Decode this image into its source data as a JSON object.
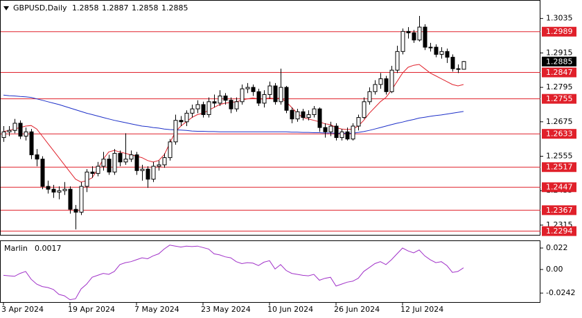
{
  "chart_data": [
    {
      "type": "candlestick",
      "title": "GBPUSD,Daily",
      "header_ohlc": [
        1.2858,
        1.2887,
        1.2858,
        1.2885
      ],
      "categories": [
        "3 Apr 2024",
        null,
        null,
        null,
        null,
        null,
        null,
        null,
        null,
        null,
        null,
        null,
        "19 Apr 2024",
        null,
        null,
        null,
        null,
        null,
        null,
        null,
        null,
        null,
        null,
        null,
        "7 May 2024",
        null,
        null,
        null,
        null,
        null,
        null,
        null,
        null,
        null,
        null,
        null,
        "23 May 2024",
        null,
        null,
        null,
        null,
        null,
        null,
        null,
        null,
        null,
        null,
        null,
        "10 Jun 2024",
        null,
        null,
        null,
        null,
        null,
        null,
        null,
        null,
        null,
        null,
        null,
        "26 Jun 2024",
        null,
        null,
        null,
        null,
        null,
        null,
        null,
        null,
        null,
        null,
        null,
        "12 Jul 2024",
        null,
        null,
        null,
        null,
        null,
        null,
        null,
        null,
        null,
        null,
        null
      ],
      "open": [
        1.262,
        1.264,
        1.2645,
        1.267,
        1.2625,
        1.264,
        1.256,
        1.2545,
        1.245,
        1.244,
        1.243,
        1.2435,
        1.244,
        1.237,
        1.236,
        1.245,
        1.25,
        1.2495,
        1.252,
        1.2545,
        1.25,
        1.2565,
        1.2535,
        1.2545,
        1.256,
        1.2505,
        1.251,
        1.2475,
        1.252,
        1.2525,
        1.255,
        1.2605,
        1.268,
        1.2675,
        1.2705,
        1.272,
        1.2735,
        1.27,
        1.2745,
        1.274,
        1.2765,
        1.275,
        1.272,
        1.2745,
        1.279,
        1.2795,
        1.278,
        1.274,
        1.277,
        1.28,
        1.2745,
        1.2795,
        1.2715,
        1.2685,
        1.271,
        1.269,
        1.27,
        1.272,
        1.2655,
        1.264,
        1.266,
        1.262,
        1.264,
        1.2615,
        1.266,
        1.269,
        1.2745,
        1.278,
        1.2805,
        1.2825,
        1.278,
        1.2855,
        1.292,
        1.299,
        1.2985,
        1.296,
        1.3005,
        1.2935,
        1.2935,
        1.291,
        1.292,
        1.29,
        1.286,
        1.2858
      ],
      "high": [
        1.266,
        1.266,
        1.2685,
        1.268,
        1.2655,
        1.265,
        1.258,
        1.2555,
        1.247,
        1.2455,
        1.245,
        1.2465,
        1.245,
        1.2385,
        1.2465,
        1.251,
        1.252,
        1.2535,
        1.257,
        1.256,
        1.258,
        1.2575,
        1.2635,
        1.2575,
        1.257,
        1.2525,
        1.252,
        1.2535,
        1.254,
        1.2565,
        1.2615,
        1.27,
        1.2695,
        1.2715,
        1.2735,
        1.275,
        1.2745,
        1.276,
        1.277,
        1.2785,
        1.2775,
        1.276,
        1.276,
        1.2805,
        1.281,
        1.2805,
        1.279,
        1.2785,
        1.2815,
        1.281,
        1.286,
        1.28,
        1.2725,
        1.272,
        1.272,
        1.2715,
        1.273,
        1.2725,
        1.267,
        1.2675,
        1.267,
        1.265,
        1.2655,
        1.267,
        1.27,
        1.276,
        1.2795,
        1.282,
        1.2845,
        1.2835,
        1.287,
        1.294,
        1.3,
        1.3005,
        1.2995,
        1.3044,
        1.3015,
        1.295,
        1.2945,
        1.2935,
        1.293,
        1.291,
        1.2875,
        1.2887
      ],
      "low": [
        1.2605,
        1.2625,
        1.2635,
        1.2615,
        1.261,
        1.2545,
        1.252,
        1.244,
        1.2425,
        1.241,
        1.2405,
        1.242,
        1.2355,
        1.23,
        1.235,
        1.243,
        1.248,
        1.2485,
        1.2505,
        1.249,
        1.249,
        1.252,
        1.2525,
        1.2535,
        1.249,
        1.247,
        1.2445,
        1.2465,
        1.2505,
        1.2515,
        1.254,
        1.2595,
        1.266,
        1.266,
        1.269,
        1.2705,
        1.269,
        1.269,
        1.2725,
        1.273,
        1.2735,
        1.2705,
        1.271,
        1.2735,
        1.2775,
        1.2765,
        1.273,
        1.2725,
        1.2755,
        1.2735,
        1.2735,
        1.2705,
        1.267,
        1.2675,
        1.268,
        1.268,
        1.269,
        1.264,
        1.262,
        1.2625,
        1.261,
        1.261,
        1.261,
        1.261,
        1.2645,
        1.2685,
        1.2735,
        1.277,
        1.279,
        1.277,
        1.2775,
        1.2845,
        1.291,
        1.2965,
        1.295,
        1.2955,
        1.2925,
        1.292,
        1.29,
        1.2895,
        1.288,
        1.285,
        1.2845,
        1.2858
      ],
      "close": [
        1.264,
        1.2645,
        1.267,
        1.2625,
        1.264,
        1.256,
        1.2545,
        1.245,
        1.244,
        1.243,
        1.2435,
        1.244,
        1.237,
        1.236,
        1.245,
        1.25,
        1.2495,
        1.252,
        1.2545,
        1.25,
        1.2565,
        1.2535,
        1.2545,
        1.256,
        1.2505,
        1.251,
        1.2475,
        1.252,
        1.2525,
        1.255,
        1.2605,
        1.268,
        1.2675,
        1.2705,
        1.272,
        1.2735,
        1.27,
        1.2745,
        1.274,
        1.2765,
        1.275,
        1.272,
        1.2745,
        1.279,
        1.2795,
        1.278,
        1.274,
        1.277,
        1.28,
        1.2745,
        1.2795,
        1.2715,
        1.2685,
        1.271,
        1.269,
        1.27,
        1.272,
        1.2655,
        1.264,
        1.266,
        1.262,
        1.264,
        1.2615,
        1.266,
        1.269,
        1.2745,
        1.278,
        1.2805,
        1.2825,
        1.278,
        1.2855,
        1.292,
        1.299,
        1.2985,
        1.296,
        1.3005,
        1.2935,
        1.2935,
        1.291,
        1.292,
        1.29,
        1.286,
        1.2858,
        1.2885
      ],
      "up_color": "#ffffff",
      "down_color": "#000000",
      "lines": [
        {
          "color": "#e0202a",
          "values": [
            1.2641,
            1.2645,
            1.265,
            1.2655,
            1.266,
            1.2662,
            1.265,
            1.2625,
            1.26,
            1.2575,
            1.255,
            1.2525,
            1.25,
            1.2475,
            1.2465,
            1.247,
            1.248,
            1.251,
            1.2545,
            1.257,
            1.2575,
            1.257,
            1.2565,
            1.256,
            1.2555,
            1.255,
            1.254,
            1.2535,
            1.254,
            1.256,
            1.26,
            1.264,
            1.266,
            1.2675,
            1.269,
            1.27,
            1.2705,
            1.2715,
            1.2725,
            1.2735,
            1.274,
            1.2742,
            1.2745,
            1.275,
            1.2755,
            1.2758,
            1.2755,
            1.2755,
            1.2758,
            1.2755,
            1.2758,
            1.2745,
            1.2725,
            1.2705,
            1.269,
            1.2685,
            1.268,
            1.2675,
            1.2668,
            1.2665,
            1.2655,
            1.265,
            1.2648,
            1.265,
            1.266,
            1.268,
            1.2705,
            1.2725,
            1.2745,
            1.276,
            1.2785,
            1.2815,
            1.2845,
            1.2865,
            1.2872,
            1.2875,
            1.286,
            1.2845,
            1.2835,
            1.2825,
            1.2815,
            1.2805,
            1.28,
            1.2805
          ]
        },
        {
          "color": "#1c2fc8",
          "values": [
            1.2768,
            1.2766,
            1.2765,
            1.2763,
            1.2762,
            1.276,
            1.2755,
            1.275,
            1.2745,
            1.274,
            1.2735,
            1.2729,
            1.2723,
            1.2717,
            1.2711,
            1.2705,
            1.27,
            1.2695,
            1.269,
            1.2685,
            1.268,
            1.2676,
            1.2672,
            1.2668,
            1.2664,
            1.266,
            1.2658,
            1.2655,
            1.2653,
            1.265,
            1.2648,
            1.2647,
            1.2646,
            1.2645,
            1.2643,
            1.2642,
            1.2642,
            1.2641,
            1.2641,
            1.264,
            1.264,
            1.264,
            1.264,
            1.264,
            1.264,
            1.264,
            1.264,
            1.264,
            1.264,
            1.264,
            1.264,
            1.264,
            1.2639,
            1.2639,
            1.2638,
            1.2638,
            1.2637,
            1.2637,
            1.2636,
            1.2636,
            1.2635,
            1.2635,
            1.2635,
            1.2635,
            1.2638,
            1.2641,
            1.2645,
            1.265,
            1.2655,
            1.266,
            1.2665,
            1.267,
            1.2674,
            1.2679,
            1.2683,
            1.2688,
            1.2691,
            1.2694,
            1.2697,
            1.2699,
            1.2702,
            1.2705,
            1.2708,
            1.2711
          ]
        }
      ],
      "levels": [
        1.2989,
        1.2847,
        1.2755,
        1.2633,
        1.2517,
        1.2447,
        1.2367,
        1.2294
      ],
      "level_color": "#e0202a",
      "last_price": 1.2885,
      "ylim": [
        1.2281,
        1.3097
      ],
      "yticks": [
        1.3035,
        1.2915,
        1.2795,
        1.2675,
        1.2555,
        1.2435,
        1.2315
      ]
    },
    {
      "type": "line",
      "title": "Marlin",
      "current": 0.0017,
      "color": "#a030c8",
      "values": [
        -0.006,
        -0.0065,
        -0.007,
        -0.004,
        -0.002,
        -0.01,
        -0.015,
        -0.0175,
        -0.0185,
        -0.0205,
        -0.0255,
        -0.027,
        -0.031,
        -0.03,
        -0.02,
        -0.015,
        -0.008,
        -0.006,
        -0.004,
        -0.005,
        -0.002,
        0.005,
        0.007,
        0.008,
        0.01,
        0.012,
        0.011,
        0.014,
        0.016,
        0.021,
        0.025,
        0.024,
        0.023,
        0.024,
        0.0235,
        0.024,
        0.0225,
        0.021,
        0.016,
        0.015,
        0.013,
        0.012,
        0.008,
        0.006,
        0.007,
        0.0065,
        0.004,
        0.0075,
        0.009,
        0.0005,
        0.005,
        -0.001,
        -0.004,
        -0.005,
        -0.006,
        -0.0065,
        -0.005,
        -0.011,
        -0.009,
        -0.008,
        -0.017,
        -0.015,
        -0.013,
        -0.012,
        -0.009,
        -0.002,
        0.002,
        0.006,
        0.008,
        0.005,
        0.01,
        0.016,
        0.022,
        0.019,
        0.017,
        0.02,
        0.014,
        0.01,
        0.007,
        0.008,
        0.004,
        -0.003,
        -0.002,
        0.0017
      ],
      "ylim": [
        -0.0341,
        0.0291
      ],
      "yticks": [
        0.022,
        {
          "value": 0,
          "label": "0.00"
        },
        -0.0242
      ]
    }
  ]
}
